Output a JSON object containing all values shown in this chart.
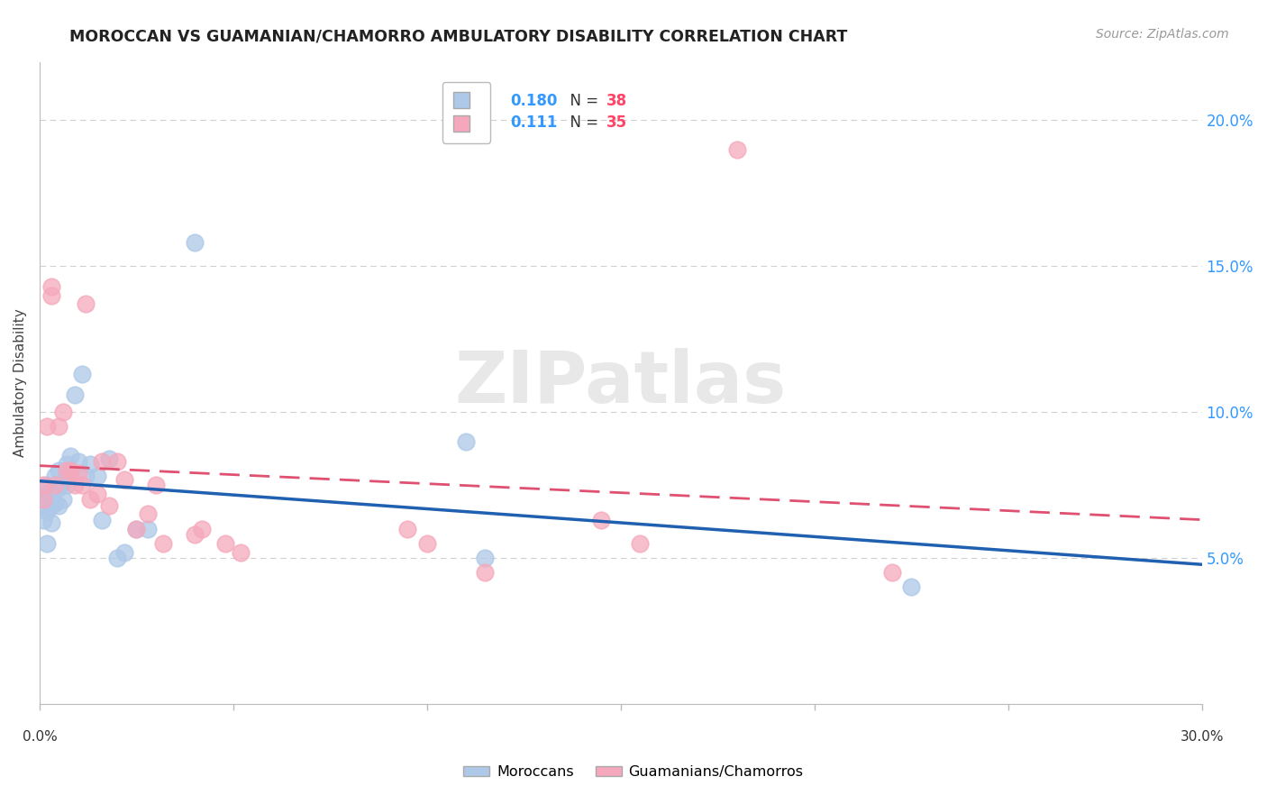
{
  "title": "MOROCCAN VS GUAMANIAN/CHAMORRO AMBULATORY DISABILITY CORRELATION CHART",
  "source": "Source: ZipAtlas.com",
  "ylabel": "Ambulatory Disability",
  "ylim": [
    0.0,
    0.22
  ],
  "xlim": [
    0.0,
    0.3
  ],
  "yticks": [
    0.05,
    0.1,
    0.15,
    0.2
  ],
  "ytick_labels": [
    "5.0%",
    "10.0%",
    "15.0%",
    "20.0%"
  ],
  "moroccan_color": "#adc8e8",
  "guamanian_color": "#f5a8bc",
  "moroccan_line_color": "#2060b0",
  "guamanian_line_color": "#e05070",
  "background_color": "#ffffff",
  "grid_color": "#d0d0d0",
  "moroccan_x": [
    0.001,
    0.001,
    0.001,
    0.002,
    0.002,
    0.002,
    0.002,
    0.003,
    0.003,
    0.003,
    0.004,
    0.004,
    0.004,
    0.005,
    0.005,
    0.005,
    0.006,
    0.006,
    0.007,
    0.007,
    0.008,
    0.008,
    0.009,
    0.01,
    0.011,
    0.012,
    0.013,
    0.015,
    0.016,
    0.018,
    0.02,
    0.022,
    0.025,
    0.028,
    0.04,
    0.11,
    0.115,
    0.225
  ],
  "moroccan_y": [
    0.072,
    0.068,
    0.063,
    0.075,
    0.07,
    0.066,
    0.055,
    0.073,
    0.068,
    0.062,
    0.078,
    0.074,
    0.069,
    0.08,
    0.074,
    0.068,
    0.076,
    0.07,
    0.082,
    0.075,
    0.085,
    0.078,
    0.106,
    0.083,
    0.113,
    0.078,
    0.082,
    0.078,
    0.063,
    0.084,
    0.05,
    0.052,
    0.06,
    0.06,
    0.158,
    0.09,
    0.05,
    0.04
  ],
  "guamanian_x": [
    0.001,
    0.001,
    0.002,
    0.003,
    0.003,
    0.004,
    0.005,
    0.006,
    0.007,
    0.008,
    0.009,
    0.01,
    0.011,
    0.012,
    0.013,
    0.015,
    0.016,
    0.018,
    0.02,
    0.022,
    0.025,
    0.028,
    0.03,
    0.032,
    0.04,
    0.042,
    0.048,
    0.052,
    0.095,
    0.1,
    0.115,
    0.145,
    0.155,
    0.18,
    0.22
  ],
  "guamanian_y": [
    0.075,
    0.07,
    0.095,
    0.14,
    0.143,
    0.075,
    0.095,
    0.1,
    0.08,
    0.08,
    0.075,
    0.079,
    0.075,
    0.137,
    0.07,
    0.072,
    0.083,
    0.068,
    0.083,
    0.077,
    0.06,
    0.065,
    0.075,
    0.055,
    0.058,
    0.06,
    0.055,
    0.052,
    0.06,
    0.055,
    0.045,
    0.063,
    0.055,
    0.19,
    0.045
  ]
}
